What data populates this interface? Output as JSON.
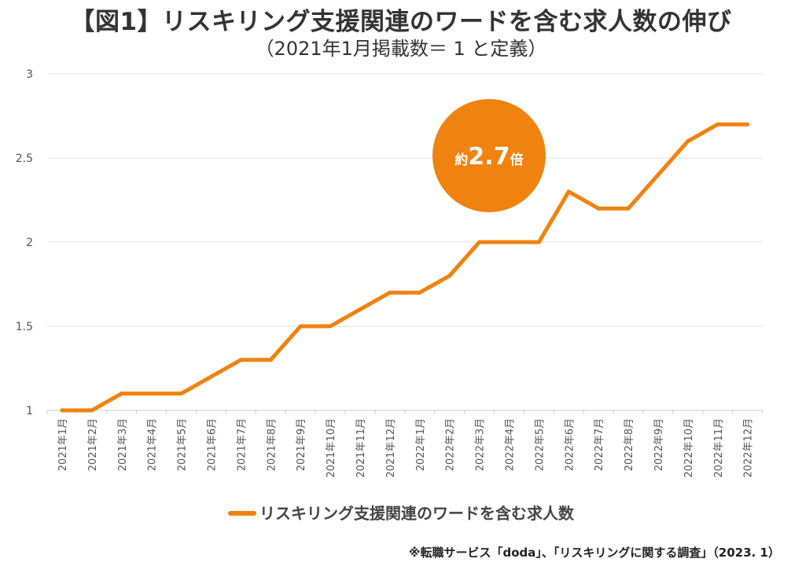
{
  "title": "【図1】リスキリング支援関連のワードを含む求人数の伸び",
  "subtitle": "（2021年1月掲載数＝ 1 と定義）",
  "source": "※転職サービス「doda」、「リスキリングに関する調査」（2023. 1）",
  "colors": {
    "line": "#f0820f",
    "badge": "#f0820f",
    "grid": "#e3e3e3",
    "axis_text": "#555555"
  },
  "badge": {
    "prefix": "約",
    "value": "2.7",
    "suffix": "倍"
  },
  "chart_data": {
    "type": "line",
    "title": "【図1】リスキリング支援関連のワードを含む求人数の伸び",
    "subtitle": "（2021年1月掲載数＝ 1 と定義）",
    "xlabel": "",
    "ylabel": "",
    "ylim": [
      1,
      3
    ],
    "yticks": [
      1,
      1.5,
      2,
      2.5,
      3
    ],
    "grid": true,
    "legend_position": "bottom",
    "categories": [
      "2021年1月",
      "2021年2月",
      "2021年3月",
      "2021年4月",
      "2021年5月",
      "2021年6月",
      "2021年7月",
      "2021年8月",
      "2021年9月",
      "2021年10月",
      "2021年11月",
      "2021年12月",
      "2022年1月",
      "2022年2月",
      "2022年3月",
      "2022年4月",
      "2022年5月",
      "2022年6月",
      "2022年7月",
      "2022年8月",
      "2022年9月",
      "2022年10月",
      "2022年11月",
      "2022年12月"
    ],
    "series": [
      {
        "name": "リスキリング支援関連のワードを含む求人数",
        "values": [
          1.0,
          1.0,
          1.1,
          1.1,
          1.1,
          1.2,
          1.3,
          1.3,
          1.5,
          1.5,
          1.6,
          1.7,
          1.7,
          1.8,
          2.0,
          2.0,
          2.0,
          2.3,
          2.2,
          2.2,
          2.4,
          2.6,
          2.7,
          2.7
        ]
      }
    ]
  }
}
